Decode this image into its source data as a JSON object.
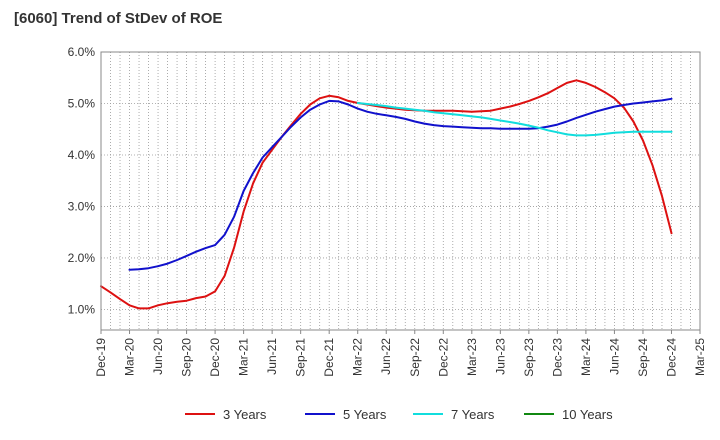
{
  "chart_data": {
    "type": "line",
    "title": "[6060]  Trend of StDev of ROE",
    "xlabel": "",
    "ylabel": "",
    "ylim": [
      0.6,
      6.0
    ],
    "y_ticks": [
      "1.0%",
      "2.0%",
      "3.0%",
      "4.0%",
      "5.0%",
      "6.0%"
    ],
    "y_tick_values": [
      1.0,
      2.0,
      3.0,
      4.0,
      5.0,
      6.0
    ],
    "x_ticks": [
      "Dec-19",
      "Mar-20",
      "Jun-20",
      "Sep-20",
      "Dec-20",
      "Mar-21",
      "Jun-21",
      "Sep-21",
      "Dec-21",
      "Mar-22",
      "Jun-22",
      "Sep-22",
      "Dec-22",
      "Mar-23",
      "Jun-23",
      "Sep-23",
      "Dec-23",
      "Mar-24",
      "Jun-24",
      "Sep-24",
      "Dec-24",
      "Mar-25"
    ],
    "grid": true,
    "legend_position": "bottom",
    "series": [
      {
        "name": "3 Years",
        "color": "#dd1111",
        "points": [
          [
            "Dec-19",
            1.45
          ],
          [
            "Jan-20",
            1.33
          ],
          [
            "Feb-20",
            1.2
          ],
          [
            "Mar-20",
            1.08
          ],
          [
            "Apr-20",
            1.02
          ],
          [
            "May-20",
            1.02
          ],
          [
            "Jun-20",
            1.08
          ],
          [
            "Jul-20",
            1.12
          ],
          [
            "Aug-20",
            1.15
          ],
          [
            "Sep-20",
            1.17
          ],
          [
            "Oct-20",
            1.22
          ],
          [
            "Nov-20",
            1.25
          ],
          [
            "Dec-20",
            1.35
          ],
          [
            "Jan-21",
            1.65
          ],
          [
            "Feb-21",
            2.2
          ],
          [
            "Mar-21",
            2.9
          ],
          [
            "Apr-21",
            3.45
          ],
          [
            "May-21",
            3.85
          ],
          [
            "Jun-21",
            4.1
          ],
          [
            "Jul-21",
            4.35
          ],
          [
            "Aug-21",
            4.58
          ],
          [
            "Sep-21",
            4.8
          ],
          [
            "Oct-21",
            4.98
          ],
          [
            "Nov-21",
            5.1
          ],
          [
            "Dec-21",
            5.15
          ],
          [
            "Jan-22",
            5.12
          ],
          [
            "Feb-22",
            5.05
          ],
          [
            "Mar-22",
            5.01
          ],
          [
            "Apr-22",
            4.98
          ],
          [
            "May-22",
            4.95
          ],
          [
            "Jun-22",
            4.92
          ],
          [
            "Jul-22",
            4.9
          ],
          [
            "Aug-22",
            4.88
          ],
          [
            "Sep-22",
            4.87
          ],
          [
            "Oct-22",
            4.86
          ],
          [
            "Nov-22",
            4.86
          ],
          [
            "Dec-22",
            4.86
          ],
          [
            "Jan-23",
            4.86
          ],
          [
            "Feb-23",
            4.85
          ],
          [
            "Mar-23",
            4.84
          ],
          [
            "Apr-23",
            4.85
          ],
          [
            "May-23",
            4.86
          ],
          [
            "Jun-23",
            4.9
          ],
          [
            "Jul-23",
            4.94
          ],
          [
            "Aug-23",
            4.99
          ],
          [
            "Sep-23",
            5.05
          ],
          [
            "Oct-23",
            5.12
          ],
          [
            "Nov-23",
            5.2
          ],
          [
            "Dec-23",
            5.3
          ],
          [
            "Jan-24",
            5.4
          ],
          [
            "Feb-24",
            5.45
          ],
          [
            "Mar-24",
            5.4
          ],
          [
            "Apr-24",
            5.32
          ],
          [
            "May-24",
            5.22
          ],
          [
            "Jun-24",
            5.1
          ],
          [
            "Jul-24",
            4.92
          ],
          [
            "Aug-24",
            4.65
          ],
          [
            "Sep-24",
            4.28
          ],
          [
            "Oct-24",
            3.8
          ],
          [
            "Nov-24",
            3.2
          ],
          [
            "Dec-24",
            2.48
          ]
        ]
      },
      {
        "name": "5 Years",
        "color": "#1111cc",
        "points": [
          [
            "Mar-20",
            1.77
          ],
          [
            "Apr-20",
            1.78
          ],
          [
            "May-20",
            1.8
          ],
          [
            "Jun-20",
            1.84
          ],
          [
            "Jul-20",
            1.89
          ],
          [
            "Aug-20",
            1.96
          ],
          [
            "Sep-20",
            2.04
          ],
          [
            "Oct-20",
            2.12
          ],
          [
            "Nov-20",
            2.19
          ],
          [
            "Dec-20",
            2.25
          ],
          [
            "Jan-21",
            2.45
          ],
          [
            "Feb-21",
            2.8
          ],
          [
            "Mar-21",
            3.3
          ],
          [
            "Apr-21",
            3.65
          ],
          [
            "May-21",
            3.95
          ],
          [
            "Jun-21",
            4.15
          ],
          [
            "Jul-21",
            4.35
          ],
          [
            "Aug-21",
            4.55
          ],
          [
            "Sep-21",
            4.73
          ],
          [
            "Oct-21",
            4.88
          ],
          [
            "Nov-21",
            4.98
          ],
          [
            "Dec-21",
            5.05
          ],
          [
            "Jan-22",
            5.04
          ],
          [
            "Feb-22",
            4.98
          ],
          [
            "Mar-22",
            4.9
          ],
          [
            "Apr-22",
            4.84
          ],
          [
            "May-22",
            4.8
          ],
          [
            "Jun-22",
            4.77
          ],
          [
            "Jul-22",
            4.74
          ],
          [
            "Aug-22",
            4.7
          ],
          [
            "Sep-22",
            4.65
          ],
          [
            "Oct-22",
            4.61
          ],
          [
            "Nov-22",
            4.58
          ],
          [
            "Dec-22",
            4.56
          ],
          [
            "Jan-23",
            4.55
          ],
          [
            "Feb-23",
            4.54
          ],
          [
            "Mar-23",
            4.53
          ],
          [
            "Apr-23",
            4.52
          ],
          [
            "May-23",
            4.52
          ],
          [
            "Jun-23",
            4.51
          ],
          [
            "Jul-23",
            4.51
          ],
          [
            "Aug-23",
            4.51
          ],
          [
            "Sep-23",
            4.51
          ],
          [
            "Oct-23",
            4.52
          ],
          [
            "Nov-23",
            4.55
          ],
          [
            "Dec-23",
            4.59
          ],
          [
            "Jan-24",
            4.65
          ],
          [
            "Feb-24",
            4.72
          ],
          [
            "Mar-24",
            4.78
          ],
          [
            "Apr-24",
            4.84
          ],
          [
            "May-24",
            4.89
          ],
          [
            "Jun-24",
            4.94
          ],
          [
            "Jul-24",
            4.97
          ],
          [
            "Aug-24",
            5.0
          ],
          [
            "Sep-24",
            5.02
          ],
          [
            "Oct-24",
            5.04
          ],
          [
            "Nov-24",
            5.06
          ],
          [
            "Dec-24",
            5.09
          ]
        ]
      },
      {
        "name": "7 Years",
        "color": "#11dddd",
        "points": [
          [
            "Mar-22",
            5.01
          ],
          [
            "Apr-22",
            4.99
          ],
          [
            "May-22",
            4.97
          ],
          [
            "Jun-22",
            4.95
          ],
          [
            "Jul-22",
            4.92
          ],
          [
            "Aug-22",
            4.9
          ],
          [
            "Sep-22",
            4.88
          ],
          [
            "Oct-22",
            4.86
          ],
          [
            "Nov-22",
            4.83
          ],
          [
            "Dec-22",
            4.81
          ],
          [
            "Jan-23",
            4.79
          ],
          [
            "Feb-23",
            4.77
          ],
          [
            "Mar-23",
            4.75
          ],
          [
            "Apr-23",
            4.73
          ],
          [
            "May-23",
            4.7
          ],
          [
            "Jun-23",
            4.67
          ],
          [
            "Jul-23",
            4.64
          ],
          [
            "Aug-23",
            4.61
          ],
          [
            "Sep-23",
            4.57
          ],
          [
            "Oct-23",
            4.53
          ],
          [
            "Nov-23",
            4.48
          ],
          [
            "Dec-23",
            4.44
          ],
          [
            "Jan-24",
            4.4
          ],
          [
            "Feb-24",
            4.38
          ],
          [
            "Mar-24",
            4.38
          ],
          [
            "Apr-24",
            4.39
          ],
          [
            "May-24",
            4.41
          ],
          [
            "Jun-24",
            4.43
          ],
          [
            "Jul-24",
            4.44
          ],
          [
            "Aug-24",
            4.45
          ],
          [
            "Sep-24",
            4.45
          ],
          [
            "Oct-24",
            4.45
          ],
          [
            "Nov-24",
            4.45
          ],
          [
            "Dec-24",
            4.45
          ]
        ]
      },
      {
        "name": "10 Years",
        "color": "#118811",
        "points": []
      }
    ]
  }
}
